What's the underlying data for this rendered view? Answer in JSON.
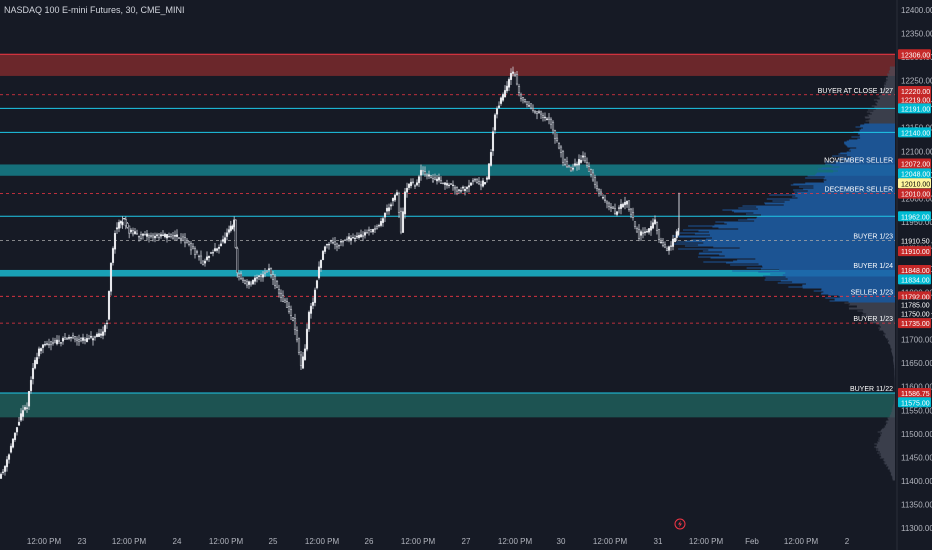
{
  "symbol_title": "NASDAQ 100 E-mini Futures, 30, CME_MINI",
  "chart_data": {
    "type": "candlestick",
    "y_ticks": [
      11300,
      11350,
      11400,
      11450,
      11500,
      11550,
      11600,
      11650,
      11700,
      11750,
      11800,
      11850,
      11900,
      11950,
      12000,
      12050,
      12100,
      12150,
      12200,
      12250,
      12300,
      12350,
      12400
    ],
    "x_ticks": [
      "12:00 PM",
      "23",
      "12:00 PM",
      "24",
      "12:00 PM",
      "25",
      "12:00 PM",
      "26",
      "12:00 PM",
      "27",
      "12:00 PM",
      "30",
      "12:00 PM",
      "31",
      "12:00 PM",
      "Feb",
      "12:00 PM",
      "2"
    ],
    "price_path": [
      [
        0,
        11410
      ],
      [
        4,
        11420
      ],
      [
        10,
        11460
      ],
      [
        16,
        11500
      ],
      [
        22,
        11540
      ],
      [
        28,
        11560
      ],
      [
        34,
        11640
      ],
      [
        40,
        11680
      ],
      [
        48,
        11690
      ],
      [
        56,
        11695
      ],
      [
        64,
        11700
      ],
      [
        72,
        11705
      ],
      [
        80,
        11700
      ],
      [
        88,
        11700
      ],
      [
        96,
        11705
      ],
      [
        102,
        11710
      ],
      [
        108,
        11740
      ],
      [
        112,
        11860
      ],
      [
        116,
        11930
      ],
      [
        120,
        11945
      ],
      [
        125,
        11955
      ],
      [
        130,
        11930
      ],
      [
        136,
        11925
      ],
      [
        142,
        11920
      ],
      [
        150,
        11920
      ],
      [
        160,
        11920
      ],
      [
        170,
        11920
      ],
      [
        180,
        11920
      ],
      [
        190,
        11900
      ],
      [
        198,
        11880
      ],
      [
        204,
        11860
      ],
      [
        210,
        11880
      ],
      [
        216,
        11890
      ],
      [
        224,
        11910
      ],
      [
        230,
        11930
      ],
      [
        235,
        11950
      ],
      [
        238,
        11840
      ],
      [
        242,
        11830
      ],
      [
        246,
        11820
      ],
      [
        252,
        11820
      ],
      [
        258,
        11830
      ],
      [
        264,
        11840
      ],
      [
        270,
        11850
      ],
      [
        276,
        11820
      ],
      [
        282,
        11790
      ],
      [
        288,
        11770
      ],
      [
        294,
        11740
      ],
      [
        298,
        11700
      ],
      [
        302,
        11640
      ],
      [
        306,
        11680
      ],
      [
        310,
        11760
      ],
      [
        314,
        11780
      ],
      [
        318,
        11830
      ],
      [
        322,
        11870
      ],
      [
        326,
        11900
      ],
      [
        332,
        11910
      ],
      [
        338,
        11900
      ],
      [
        344,
        11910
      ],
      [
        350,
        11915
      ],
      [
        356,
        11920
      ],
      [
        362,
        11920
      ],
      [
        368,
        11930
      ],
      [
        374,
        11935
      ],
      [
        380,
        11940
      ],
      [
        386,
        11970
      ],
      [
        392,
        11990
      ],
      [
        398,
        12010
      ],
      [
        402,
        11930
      ],
      [
        406,
        12010
      ],
      [
        410,
        12030
      ],
      [
        414,
        12030
      ],
      [
        418,
        12030
      ],
      [
        422,
        12060
      ],
      [
        428,
        12050
      ],
      [
        434,
        12040
      ],
      [
        440,
        12040
      ],
      [
        446,
        12030
      ],
      [
        452,
        12030
      ],
      [
        458,
        12020
      ],
      [
        464,
        12020
      ],
      [
        470,
        12030
      ],
      [
        476,
        12040
      ],
      [
        482,
        12030
      ],
      [
        488,
        12040
      ],
      [
        492,
        12100
      ],
      [
        496,
        12180
      ],
      [
        500,
        12200
      ],
      [
        504,
        12220
      ],
      [
        508,
        12240
      ],
      [
        512,
        12270
      ],
      [
        516,
        12260
      ],
      [
        520,
        12220
      ],
      [
        524,
        12210
      ],
      [
        528,
        12200
      ],
      [
        534,
        12190
      ],
      [
        540,
        12180
      ],
      [
        546,
        12170
      ],
      [
        552,
        12160
      ],
      [
        556,
        12130
      ],
      [
        560,
        12110
      ],
      [
        564,
        12080
      ],
      [
        568,
        12070
      ],
      [
        572,
        12060
      ],
      [
        576,
        12070
      ],
      [
        580,
        12080
      ],
      [
        584,
        12090
      ],
      [
        588,
        12070
      ],
      [
        592,
        12050
      ],
      [
        596,
        12030
      ],
      [
        600,
        12010
      ],
      [
        604,
        12000
      ],
      [
        608,
        11990
      ],
      [
        612,
        11980
      ],
      [
        616,
        11970
      ],
      [
        620,
        11980
      ],
      [
        624,
        11990
      ],
      [
        628,
        11990
      ],
      [
        632,
        11970
      ],
      [
        636,
        11940
      ],
      [
        640,
        11920
      ],
      [
        644,
        11930
      ],
      [
        648,
        11930
      ],
      [
        652,
        11940
      ],
      [
        656,
        11950
      ],
      [
        660,
        11910
      ],
      [
        664,
        11900
      ],
      [
        668,
        11890
      ],
      [
        672,
        11900
      ],
      [
        676,
        11920
      ],
      [
        679,
        11930
      ]
    ],
    "last_candle_high": 12012,
    "profile_top": 12280,
    "profile_bottom": 11400,
    "poc_price": 11910
  },
  "zones": [
    {
      "name": "red-resistance-zone",
      "top": 12306,
      "bottom": 12260,
      "color": "#7a2a2d"
    },
    {
      "name": "november-seller-zone",
      "top": 12072,
      "bottom": 12048,
      "color": "#157f8a"
    },
    {
      "name": "buyer-1-24-zone",
      "top": 11848,
      "bottom": 11834,
      "color": "#1ab8cf"
    },
    {
      "name": "buyer-11-22-zone",
      "top": 11586,
      "bottom": 11535,
      "color": "#1e5e5a"
    }
  ],
  "lines": [
    {
      "name": "level-12306",
      "price": 12306,
      "color": "#f23645",
      "style": "solid"
    },
    {
      "name": "level-12220",
      "price": 12220,
      "color": "#f23645",
      "style": "dash"
    },
    {
      "name": "level-12191",
      "price": 12191,
      "color": "#1ec8e8",
      "style": "solid"
    },
    {
      "name": "level-12140",
      "price": 12140,
      "color": "#1ec8e8",
      "style": "solid"
    },
    {
      "name": "level-12010",
      "price": 12010,
      "color": "#f23645",
      "style": "dash"
    },
    {
      "name": "level-11962",
      "price": 11962,
      "color": "#1ec8e8",
      "style": "solid"
    },
    {
      "name": "level-11910",
      "price": 11910.5,
      "color": "#aaaaaa",
      "style": "dash"
    },
    {
      "name": "level-11792",
      "price": 11792,
      "color": "#f23645",
      "style": "dash"
    },
    {
      "name": "level-11735",
      "price": 11735,
      "color": "#f23645",
      "style": "dash"
    },
    {
      "name": "level-11586",
      "price": 11586.75,
      "color": "#1ec8e8",
      "style": "solid"
    }
  ],
  "level_labels": [
    {
      "text": "BUYER AT CLOSE 1/27",
      "price": 12220
    },
    {
      "text": "NOVEMBER SELLER",
      "price": 12072
    },
    {
      "text": "DECEMBER SELLER",
      "price": 12010
    },
    {
      "text": "BUYER 1/23",
      "price": 11910.5
    },
    {
      "text": "BUYER 1/24",
      "price": 11848
    },
    {
      "text": "SELLER 1/23",
      "price": 11792
    },
    {
      "text": "BUYER 1/23",
      "price": 11735
    },
    {
      "text": "BUYER 11/22",
      "price": 11586.75
    }
  ],
  "price_tags": [
    {
      "text": "12306.00",
      "price": 12306,
      "color": "#c62828"
    },
    {
      "text": "12220.00",
      "price": 12228,
      "color": "#c62828"
    },
    {
      "text": "12219.00",
      "price": 12210,
      "color": "#c62828"
    },
    {
      "text": "12191.00",
      "price": 12191,
      "color": "#00bcd4"
    },
    {
      "text": "12140.00",
      "price": 12140,
      "color": "#00bcd4"
    },
    {
      "text": "12072.00",
      "price": 12074,
      "color": "#c62828"
    },
    {
      "text": "12048.00",
      "price": 12053,
      "color": "#00bcd4"
    },
    {
      "text": "12010.00",
      "price": 12032,
      "color": "#fff59d"
    },
    {
      "text": "12010.00",
      "price": 12010,
      "color": "#c62828"
    },
    {
      "text": "11962.00",
      "price": 11962,
      "color": "#00bcd4"
    },
    {
      "text": "11910.50",
      "price": 11910.5,
      "color": "#161a25"
    },
    {
      "text": "11910.00",
      "price": 11888,
      "color": "#c62828"
    },
    {
      "text": "11848.00",
      "price": 11848,
      "color": "#c62828"
    },
    {
      "text": "11834.00",
      "price": 11828,
      "color": "#00bcd4"
    },
    {
      "text": "11792.00",
      "price": 11792,
      "color": "#c62828"
    },
    {
      "text": "11785.00",
      "price": 11775,
      "color": "#161a25"
    },
    {
      "text": "11750.00",
      "price": 11755,
      "color": "#161a25"
    },
    {
      "text": "11735.00",
      "price": 11735,
      "color": "#c62828"
    },
    {
      "text": "11586.75",
      "price": 11586.75,
      "color": "#c62828"
    },
    {
      "text": "11575.00",
      "price": 11567,
      "color": "#00bcd4"
    }
  ],
  "lightning_icon": "lightning-icon"
}
